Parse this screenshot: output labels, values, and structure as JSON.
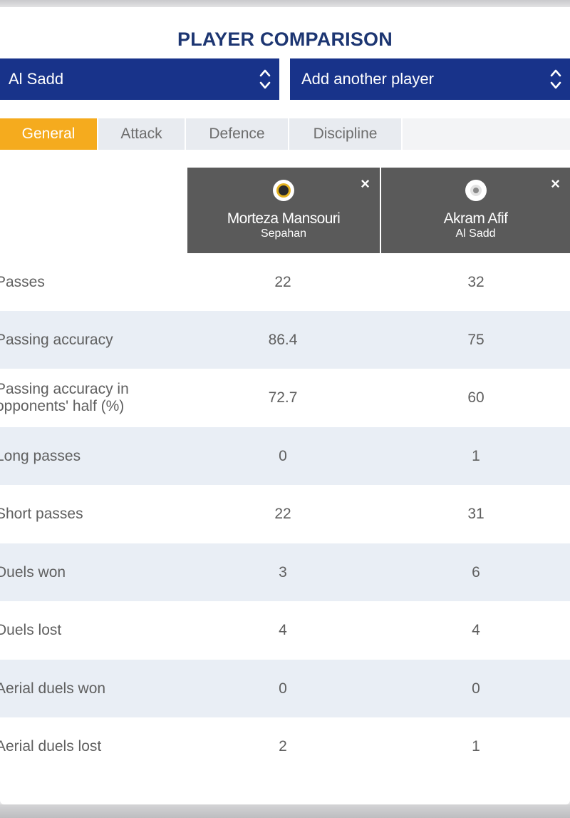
{
  "title": "PLAYER COMPARISON",
  "selectors": {
    "club": "Al Sadd",
    "add_player": "Add another player"
  },
  "tabs": [
    {
      "label": "General",
      "active": true
    },
    {
      "label": "Attack",
      "active": false
    },
    {
      "label": "Defence",
      "active": false
    },
    {
      "label": "Discipline",
      "active": false
    }
  ],
  "players": [
    {
      "name": "Morteza Mansouri",
      "club": "Sepahan",
      "close": "×",
      "badge_icon": "sepahan-club-badge-icon"
    },
    {
      "name": "Akram Afif",
      "club": "Al Sadd",
      "close": "×",
      "badge_icon": "al-sadd-club-badge-icon"
    }
  ],
  "stats": [
    {
      "label": "Passes",
      "p1": "22",
      "p2": "32"
    },
    {
      "label": "Passing accuracy",
      "p1": "86.4",
      "p2": "75"
    },
    {
      "label": "Passing accuracy in opponents' half (%)",
      "p1": "72.7",
      "p2": "60"
    },
    {
      "label": "Long passes",
      "p1": "0",
      "p2": "1"
    },
    {
      "label": "Short passes",
      "p1": "22",
      "p2": "31"
    },
    {
      "label": "Duels won",
      "p1": "3",
      "p2": "6"
    },
    {
      "label": "Duels lost",
      "p1": "4",
      "p2": "4"
    },
    {
      "label": "Aerial duels won",
      "p1": "0",
      "p2": "0"
    },
    {
      "label": "Aerial duels lost",
      "p1": "2",
      "p2": "1"
    }
  ],
  "colors": {
    "brand_navy": "#18338a",
    "title_navy": "#1d3672",
    "tab_active": "#f5ab1e",
    "player_header": "#5a5a5a",
    "row_alt": "#e9eef5"
  }
}
